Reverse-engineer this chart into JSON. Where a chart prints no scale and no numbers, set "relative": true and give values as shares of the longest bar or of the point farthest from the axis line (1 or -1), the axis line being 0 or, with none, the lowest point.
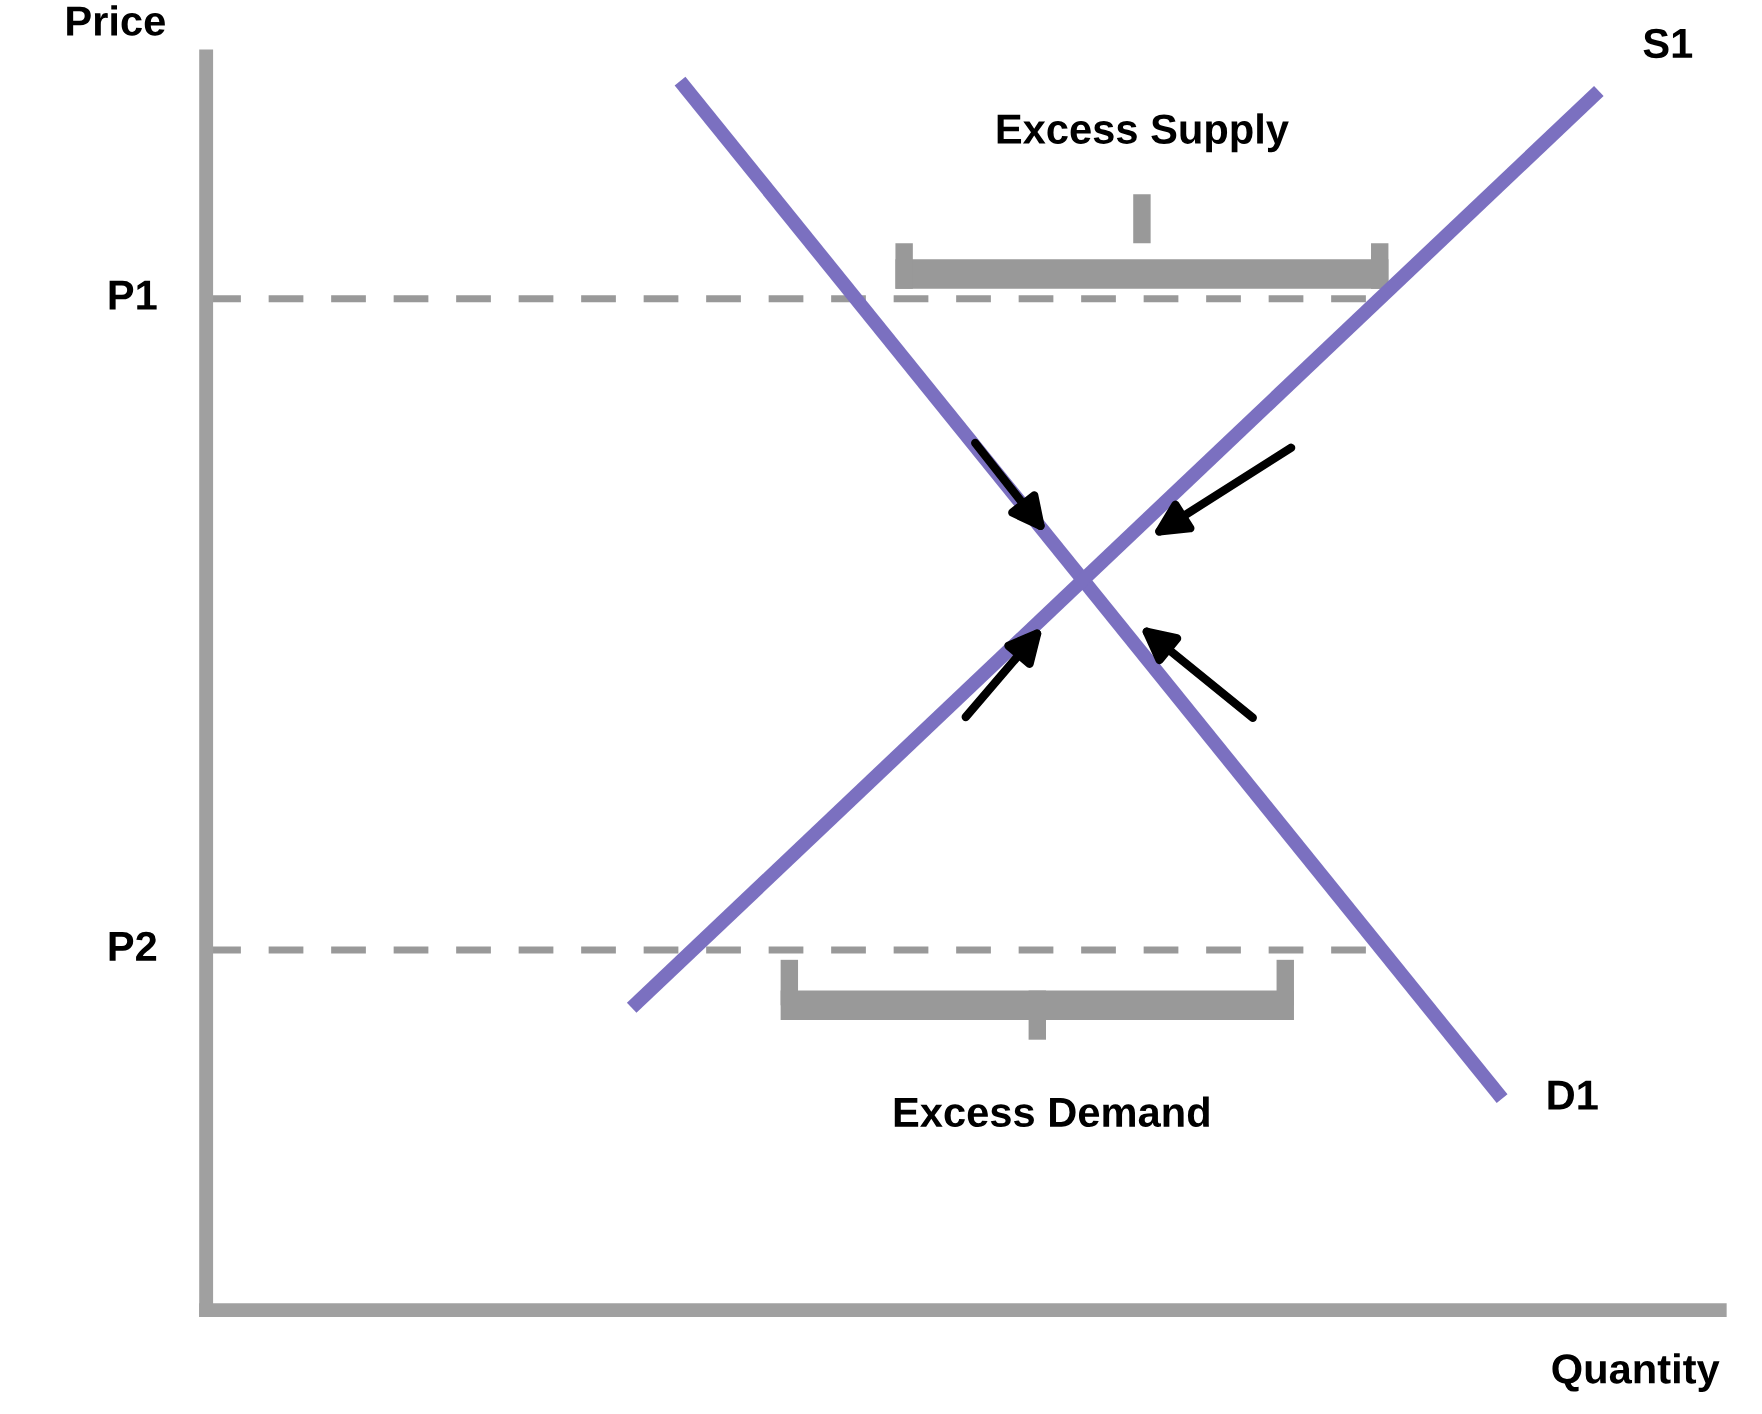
{
  "chart_data": {
    "type": "line",
    "relative": true,
    "xlabel": "Quantity",
    "ylabel": "Price",
    "categories": [
      null,
      null,
      null,
      null,
      null,
      null,
      null,
      null,
      null,
      null,
      null,
      null,
      null,
      null,
      null,
      null,
      null,
      null,
      null,
      null,
      null,
      null,
      null,
      null,
      null,
      null,
      null,
      null,
      null,
      null
    ],
    "series": [
      {
        "name": "D1",
        "color": "#7b70c0",
        "values": [
          null,
          null,
          null,
          null,
          null,
          null,
          null,
          null,
          null,
          1,
          null,
          null,
          null,
          null,
          null,
          null,
          null,
          null,
          null,
          null,
          null,
          null,
          null,
          null,
          null,
          null,
          0.172,
          null,
          null,
          null
        ]
      },
      {
        "name": "S1",
        "color": "#7b70c0",
        "values": [
          null,
          null,
          null,
          null,
          null,
          null,
          null,
          null,
          0.246,
          null,
          null,
          null,
          null,
          null,
          null,
          null,
          null,
          null,
          null,
          null,
          null,
          null,
          null,
          null,
          null,
          null,
          null,
          null,
          0.992,
          null
        ]
      }
    ],
    "ref_lines": [
      {
        "axis": "y",
        "value": 0.823,
        "label": "P1",
        "color": "#999999",
        "line_style": "dashed"
      },
      {
        "axis": "y",
        "value": 0.293,
        "label": "P2",
        "color": "#999999",
        "line_style": "dashed"
      }
    ],
    "annotations": [
      "Excess Supply",
      "Excess Demand"
    ],
    "marker": "none",
    "line_style": "solid"
  }
}
